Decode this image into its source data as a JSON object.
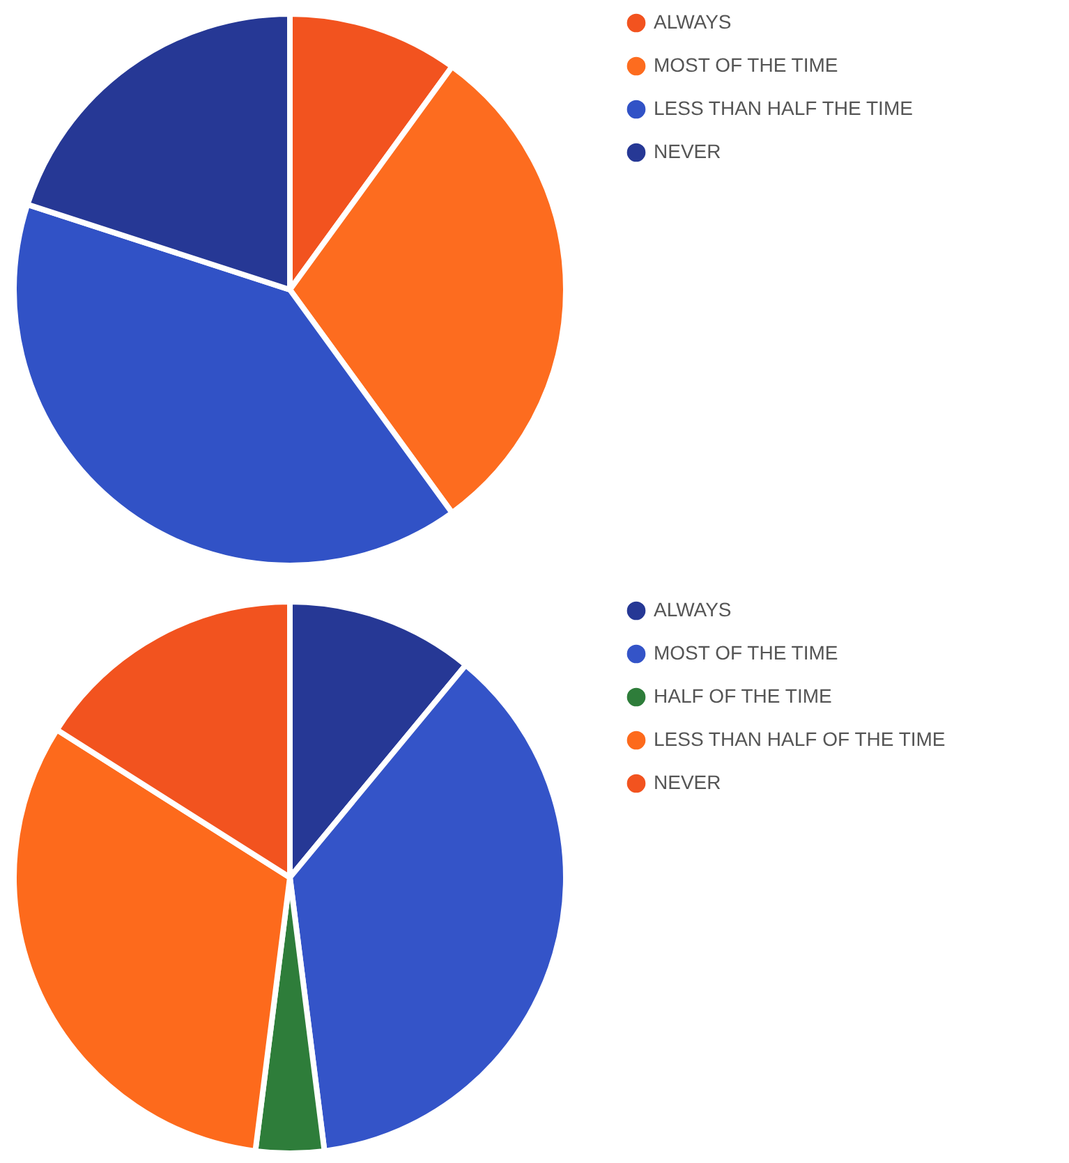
{
  "chart_data": [
    {
      "type": "pie",
      "categories": [
        "ALWAYS",
        "MOST OF THE TIME",
        "LESS THAN HALF THE TIME",
        "NEVER"
      ],
      "values": [
        10,
        30,
        40,
        20
      ],
      "colors": [
        "#f2531f",
        "#fd6c1f",
        "#3152c6",
        "#263895"
      ],
      "legend": "right"
    },
    {
      "type": "pie",
      "categories": [
        "ALWAYS",
        "MOST OF THE TIME",
        "HALF OF THE TIME",
        "LESS THAN HALF OF THE TIME",
        "NEVER"
      ],
      "values": [
        11,
        37,
        4,
        32,
        16
      ],
      "colors": [
        "#263895",
        "#3454c8",
        "#2e7d3a",
        "#fd6a1c",
        "#f2531f"
      ],
      "legend": "right"
    }
  ]
}
